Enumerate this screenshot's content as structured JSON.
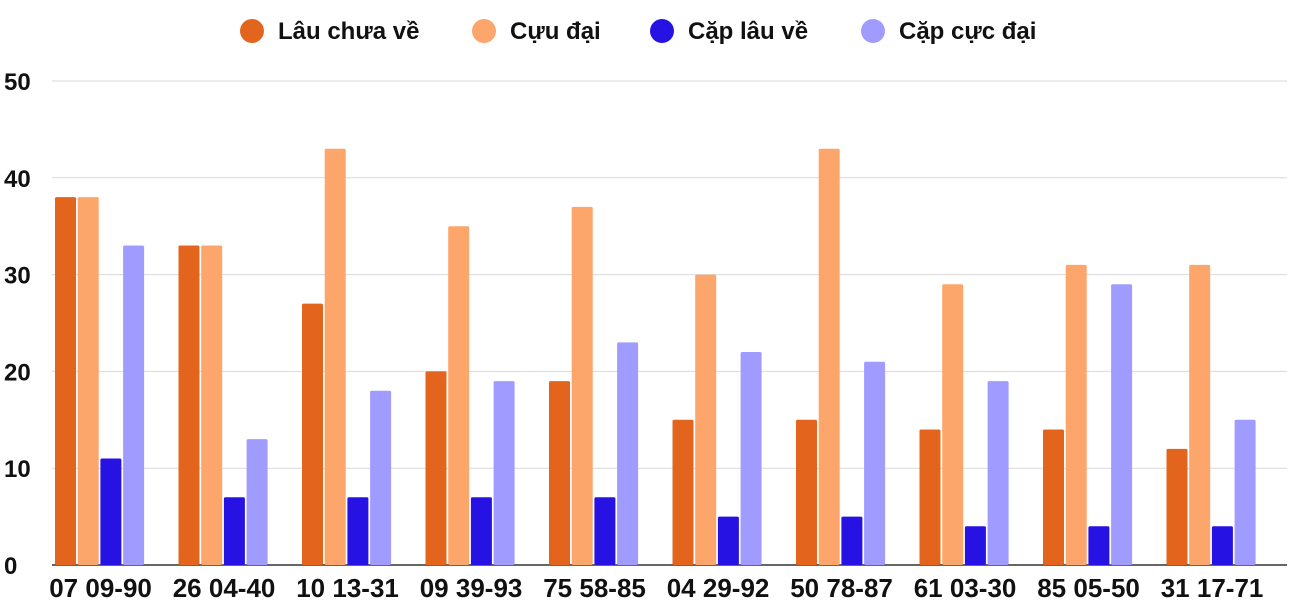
{
  "chart_data": {
    "type": "bar",
    "categories": [
      "07 09-90",
      "26 04-40",
      "10 13-31",
      "09 39-93",
      "75 58-85",
      "04 29-92",
      "50 78-87",
      "61 03-30",
      "85 05-50",
      "31 17-71"
    ],
    "series": [
      {
        "name": "Lâu chưa về",
        "color": "#e3651d",
        "values": [
          38,
          33,
          27,
          20,
          19,
          15,
          15,
          14,
          14,
          12
        ]
      },
      {
        "name": "Cựu đại",
        "color": "#fda66b",
        "values": [
          38,
          33,
          43,
          35,
          37,
          30,
          43,
          29,
          31,
          31
        ]
      },
      {
        "name": "Cặp lâu về",
        "color": "#2613e3",
        "values": [
          11,
          7,
          7,
          7,
          7,
          5,
          5,
          4,
          4,
          4
        ]
      },
      {
        "name": "Cặp cực đại",
        "color": "#a09cff",
        "values": [
          33,
          13,
          18,
          19,
          23,
          22,
          21,
          19,
          29,
          15
        ]
      }
    ],
    "yticks": [
      "0",
      "10",
      "20",
      "30",
      "40",
      "50"
    ],
    "ylim": [
      0,
      50
    ],
    "grid": true,
    "legend": "top-center"
  }
}
